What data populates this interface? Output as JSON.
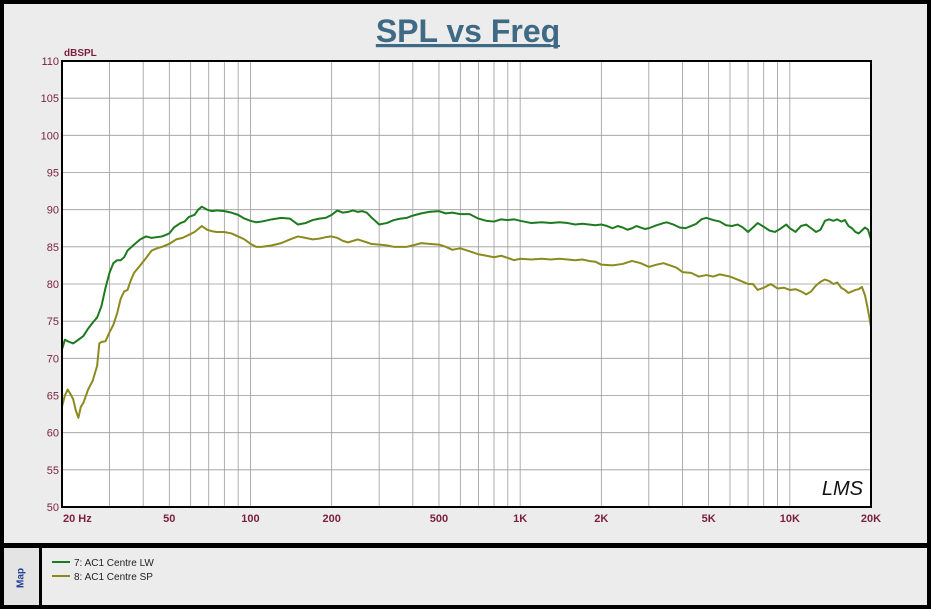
{
  "chart_data": {
    "type": "line",
    "title": "SPL vs Freq",
    "ylabel": "dBSPL",
    "xscale": "log",
    "xlim": [
      20,
      20000
    ],
    "ylim": [
      50,
      110
    ],
    "grid": true,
    "legend_placement": "bottom-left",
    "yticks": [
      50,
      55,
      60,
      65,
      70,
      75,
      80,
      85,
      90,
      95,
      100,
      105,
      110
    ],
    "xticks": [
      {
        "value": 20,
        "label": "20  Hz"
      },
      {
        "value": 50,
        "label": "50"
      },
      {
        "value": 100,
        "label": "100"
      },
      {
        "value": 200,
        "label": "200"
      },
      {
        "value": 500,
        "label": "500"
      },
      {
        "value": 1000,
        "label": "1K"
      },
      {
        "value": 2000,
        "label": "2K"
      },
      {
        "value": 5000,
        "label": "5K"
      },
      {
        "value": 10000,
        "label": "10K"
      },
      {
        "value": 20000,
        "label": "20K"
      }
    ],
    "series": [
      {
        "name": "7: AC1 Centre LW",
        "color": "#1e7a1e",
        "points": [
          [
            20,
            71.2
          ],
          [
            20.5,
            72.5
          ],
          [
            21,
            72.3
          ],
          [
            22,
            72.0
          ],
          [
            23,
            72.5
          ],
          [
            24,
            73.0
          ],
          [
            25,
            74.0
          ],
          [
            26,
            74.8
          ],
          [
            27,
            75.5
          ],
          [
            28,
            77.0
          ],
          [
            29,
            79.5
          ],
          [
            30,
            81.5
          ],
          [
            31,
            82.8
          ],
          [
            32,
            83.2
          ],
          [
            33,
            83.2
          ],
          [
            34,
            83.6
          ],
          [
            35,
            84.5
          ],
          [
            37,
            85.3
          ],
          [
            39,
            86.0
          ],
          [
            41,
            86.4
          ],
          [
            43,
            86.2
          ],
          [
            45,
            86.3
          ],
          [
            47,
            86.4
          ],
          [
            50,
            86.8
          ],
          [
            52,
            87.6
          ],
          [
            55,
            88.2
          ],
          [
            57,
            88.4
          ],
          [
            59,
            89.0
          ],
          [
            62,
            89.3
          ],
          [
            64,
            90.0
          ],
          [
            66,
            90.4
          ],
          [
            69,
            90.0
          ],
          [
            72,
            89.8
          ],
          [
            75,
            89.9
          ],
          [
            80,
            89.8
          ],
          [
            85,
            89.6
          ],
          [
            90,
            89.3
          ],
          [
            95,
            88.8
          ],
          [
            100,
            88.5
          ],
          [
            105,
            88.3
          ],
          [
            110,
            88.4
          ],
          [
            120,
            88.7
          ],
          [
            130,
            88.9
          ],
          [
            140,
            88.8
          ],
          [
            150,
            88.0
          ],
          [
            160,
            88.2
          ],
          [
            170,
            88.6
          ],
          [
            180,
            88.8
          ],
          [
            190,
            88.9
          ],
          [
            200,
            89.3
          ],
          [
            210,
            89.9
          ],
          [
            220,
            89.6
          ],
          [
            230,
            89.7
          ],
          [
            240,
            89.9
          ],
          [
            250,
            89.7
          ],
          [
            260,
            89.8
          ],
          [
            270,
            89.6
          ],
          [
            280,
            89.0
          ],
          [
            290,
            88.5
          ],
          [
            300,
            88.0
          ],
          [
            320,
            88.2
          ],
          [
            340,
            88.6
          ],
          [
            360,
            88.8
          ],
          [
            380,
            88.9
          ],
          [
            400,
            89.2
          ],
          [
            430,
            89.5
          ],
          [
            460,
            89.7
          ],
          [
            500,
            89.8
          ],
          [
            530,
            89.5
          ],
          [
            560,
            89.6
          ],
          [
            600,
            89.4
          ],
          [
            650,
            89.4
          ],
          [
            700,
            88.8
          ],
          [
            750,
            88.5
          ],
          [
            800,
            88.4
          ],
          [
            850,
            88.7
          ],
          [
            900,
            88.6
          ],
          [
            950,
            88.7
          ],
          [
            1000,
            88.5
          ],
          [
            1100,
            88.2
          ],
          [
            1200,
            88.3
          ],
          [
            1300,
            88.2
          ],
          [
            1400,
            88.3
          ],
          [
            1500,
            88.2
          ],
          [
            1600,
            88.0
          ],
          [
            1700,
            88.1
          ],
          [
            1800,
            88.0
          ],
          [
            1900,
            87.9
          ],
          [
            2000,
            88.0
          ],
          [
            2100,
            87.8
          ],
          [
            2200,
            87.5
          ],
          [
            2300,
            87.8
          ],
          [
            2400,
            87.6
          ],
          [
            2500,
            87.3
          ],
          [
            2600,
            87.5
          ],
          [
            2700,
            87.8
          ],
          [
            2800,
            87.6
          ],
          [
            2900,
            87.4
          ],
          [
            3000,
            87.5
          ],
          [
            3200,
            87.9
          ],
          [
            3400,
            88.2
          ],
          [
            3500,
            88.3
          ],
          [
            3700,
            88.0
          ],
          [
            3900,
            87.6
          ],
          [
            4100,
            87.5
          ],
          [
            4300,
            87.8
          ],
          [
            4500,
            88.1
          ],
          [
            4700,
            88.7
          ],
          [
            4900,
            88.9
          ],
          [
            5200,
            88.6
          ],
          [
            5500,
            88.4
          ],
          [
            5800,
            87.9
          ],
          [
            6100,
            87.8
          ],
          [
            6400,
            88.0
          ],
          [
            6700,
            87.6
          ],
          [
            7000,
            87.0
          ],
          [
            7300,
            87.6
          ],
          [
            7600,
            88.2
          ],
          [
            8000,
            87.7
          ],
          [
            8400,
            87.2
          ],
          [
            8800,
            87.0
          ],
          [
            9200,
            87.4
          ],
          [
            9700,
            88.0
          ],
          [
            10000,
            87.5
          ],
          [
            10500,
            87.0
          ],
          [
            11000,
            87.8
          ],
          [
            11500,
            88.0
          ],
          [
            12000,
            87.5
          ],
          [
            12500,
            87.0
          ],
          [
            13000,
            87.3
          ],
          [
            13500,
            88.5
          ],
          [
            14000,
            88.7
          ],
          [
            14500,
            88.5
          ],
          [
            15000,
            88.7
          ],
          [
            15500,
            88.4
          ],
          [
            16000,
            88.6
          ],
          [
            16500,
            87.8
          ],
          [
            17000,
            87.5
          ],
          [
            17500,
            87.0
          ],
          [
            18000,
            86.8
          ],
          [
            18500,
            87.2
          ],
          [
            19000,
            87.6
          ],
          [
            19500,
            87.3
          ],
          [
            20000,
            86.0
          ]
        ]
      },
      {
        "name": "8: AC1 Centre SP",
        "color": "#8c8a1e",
        "points": [
          [
            20,
            63.5
          ],
          [
            20.5,
            65.0
          ],
          [
            21,
            65.8
          ],
          [
            21.5,
            65.2
          ],
          [
            22,
            64.5
          ],
          [
            22.5,
            63.0
          ],
          [
            23,
            62.0
          ],
          [
            23.5,
            63.5
          ],
          [
            24,
            64.0
          ],
          [
            25,
            65.8
          ],
          [
            26,
            67.0
          ],
          [
            27,
            69.0
          ],
          [
            27.5,
            72.0
          ],
          [
            28,
            72.2
          ],
          [
            29,
            72.3
          ],
          [
            30,
            73.5
          ],
          [
            31,
            74.5
          ],
          [
            32,
            76.0
          ],
          [
            33,
            78.0
          ],
          [
            34,
            79.0
          ],
          [
            35,
            79.2
          ],
          [
            36,
            80.5
          ],
          [
            37,
            81.5
          ],
          [
            39,
            82.5
          ],
          [
            41,
            83.5
          ],
          [
            43,
            84.5
          ],
          [
            45,
            84.8
          ],
          [
            47,
            85.0
          ],
          [
            50,
            85.4
          ],
          [
            53,
            86.0
          ],
          [
            56,
            86.2
          ],
          [
            59,
            86.6
          ],
          [
            62,
            87.0
          ],
          [
            64,
            87.4
          ],
          [
            66,
            87.8
          ],
          [
            69,
            87.3
          ],
          [
            72,
            87.1
          ],
          [
            75,
            87.0
          ],
          [
            80,
            87.0
          ],
          [
            85,
            86.8
          ],
          [
            90,
            86.4
          ],
          [
            95,
            86.0
          ],
          [
            100,
            85.4
          ],
          [
            105,
            85.0
          ],
          [
            110,
            85.0
          ],
          [
            120,
            85.2
          ],
          [
            130,
            85.5
          ],
          [
            140,
            86.0
          ],
          [
            150,
            86.4
          ],
          [
            160,
            86.2
          ],
          [
            170,
            86.0
          ],
          [
            180,
            86.1
          ],
          [
            190,
            86.3
          ],
          [
            200,
            86.4
          ],
          [
            210,
            86.2
          ],
          [
            220,
            85.8
          ],
          [
            230,
            85.6
          ],
          [
            240,
            85.8
          ],
          [
            250,
            86.0
          ],
          [
            260,
            85.8
          ],
          [
            270,
            85.6
          ],
          [
            280,
            85.4
          ],
          [
            300,
            85.3
          ],
          [
            320,
            85.2
          ],
          [
            340,
            85.0
          ],
          [
            360,
            85.0
          ],
          [
            380,
            85.0
          ],
          [
            400,
            85.2
          ],
          [
            430,
            85.5
          ],
          [
            460,
            85.4
          ],
          [
            500,
            85.3
          ],
          [
            530,
            85.0
          ],
          [
            560,
            84.6
          ],
          [
            600,
            84.8
          ],
          [
            650,
            84.4
          ],
          [
            700,
            84.0
          ],
          [
            750,
            83.8
          ],
          [
            800,
            83.6
          ],
          [
            850,
            83.8
          ],
          [
            900,
            83.5
          ],
          [
            950,
            83.2
          ],
          [
            1000,
            83.4
          ],
          [
            1100,
            83.3
          ],
          [
            1200,
            83.4
          ],
          [
            1300,
            83.3
          ],
          [
            1400,
            83.4
          ],
          [
            1500,
            83.3
          ],
          [
            1600,
            83.2
          ],
          [
            1700,
            83.3
          ],
          [
            1800,
            83.1
          ],
          [
            1900,
            83.0
          ],
          [
            2000,
            82.6
          ],
          [
            2200,
            82.5
          ],
          [
            2400,
            82.7
          ],
          [
            2600,
            83.1
          ],
          [
            2800,
            82.8
          ],
          [
            3000,
            82.3
          ],
          [
            3200,
            82.6
          ],
          [
            3400,
            82.8
          ],
          [
            3600,
            82.5
          ],
          [
            3800,
            82.2
          ],
          [
            4000,
            81.6
          ],
          [
            4300,
            81.5
          ],
          [
            4600,
            81.0
          ],
          [
            4900,
            81.2
          ],
          [
            5200,
            81.0
          ],
          [
            5500,
            81.3
          ],
          [
            6000,
            81.0
          ],
          [
            6500,
            80.5
          ],
          [
            7000,
            80.0
          ],
          [
            7300,
            80.0
          ],
          [
            7600,
            79.2
          ],
          [
            8000,
            79.5
          ],
          [
            8500,
            80.0
          ],
          [
            9000,
            79.4
          ],
          [
            9500,
            79.5
          ],
          [
            10000,
            79.2
          ],
          [
            10500,
            79.3
          ],
          [
            11000,
            79.0
          ],
          [
            11500,
            78.6
          ],
          [
            12000,
            79.0
          ],
          [
            12500,
            79.8
          ],
          [
            13000,
            80.3
          ],
          [
            13500,
            80.6
          ],
          [
            14000,
            80.4
          ],
          [
            14500,
            80.0
          ],
          [
            15000,
            80.2
          ],
          [
            15500,
            79.5
          ],
          [
            16000,
            79.2
          ],
          [
            16500,
            78.8
          ],
          [
            17000,
            79.0
          ],
          [
            17500,
            79.2
          ],
          [
            18000,
            79.3
          ],
          [
            18500,
            79.6
          ],
          [
            19000,
            78.5
          ],
          [
            19500,
            76.5
          ],
          [
            20000,
            74.2
          ]
        ]
      }
    ]
  },
  "legend_panel": {
    "tab_label": "Map",
    "items": [
      {
        "label": "7: AC1 Centre LW",
        "color": "#1e7a1e"
      },
      {
        "label": "8: AC1 Centre SP",
        "color": "#8c8a1e"
      }
    ]
  },
  "watermark": "LMS"
}
